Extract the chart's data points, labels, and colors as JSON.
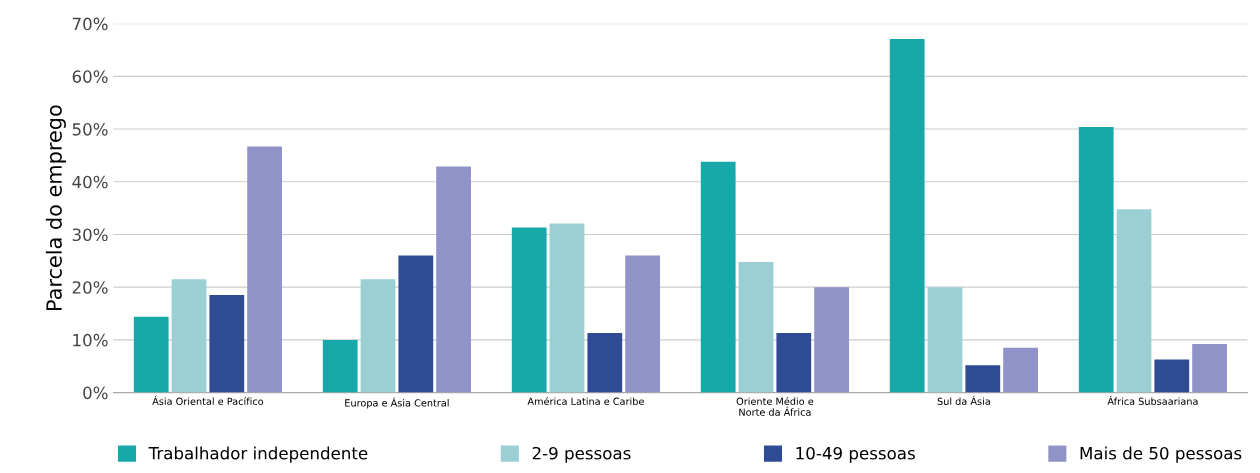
{
  "chart_data": {
    "type": "bar",
    "ylabel": "Parcela do emprego",
    "categories": [
      "Ásia Oriental e Pacífico",
      "Europa e Ásia Central",
      "América Latina e Caribe",
      "Oriente Médio e\nNorte da África",
      "Sul da Ásia",
      "África Subsaariana"
    ],
    "series": [
      {
        "name": "Trabalhador independente",
        "color": "#17a9a9",
        "values": [
          14.4,
          10,
          31.3,
          43.8,
          67.1,
          50.4
        ]
      },
      {
        "name": "2-9 pessoas",
        "color": "#9ccfd3",
        "values": [
          21.5,
          21.5,
          32.1,
          24.8,
          20,
          34.8
        ]
      },
      {
        "name": "10-49 pessoas",
        "color": "#2e4b93",
        "values": [
          18.5,
          26,
          11.3,
          11.3,
          5.2,
          6.3
        ]
      },
      {
        "name": "Mais de 50 pessoas",
        "color": "#8f93c8",
        "values": [
          46.7,
          42.9,
          26,
          20,
          8.5,
          9.2
        ]
      }
    ],
    "ylim": [
      0,
      70
    ],
    "yticks": [
      {
        "value": 0,
        "label": "0%"
      },
      {
        "value": 10,
        "label": "10%"
      },
      {
        "value": 20,
        "label": "20%"
      },
      {
        "value": 30,
        "label": "30%"
      },
      {
        "value": 40,
        "label": "40%"
      },
      {
        "value": 50,
        "label": "50%"
      },
      {
        "value": 60,
        "label": "60%"
      },
      {
        "value": 70,
        "label": "70%"
      }
    ],
    "grid": "y",
    "legend": "bottom"
  }
}
